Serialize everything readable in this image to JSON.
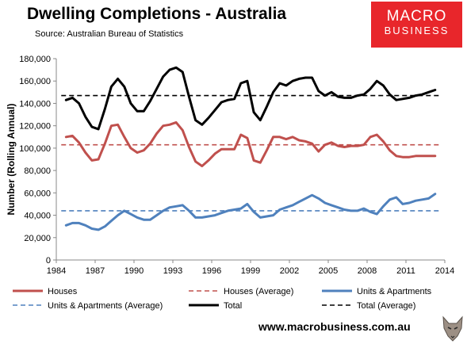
{
  "header": {
    "title": "Dwelling Completions - Australia",
    "subtitle": "Source: Australian Bureau of Statistics"
  },
  "logo": {
    "line1": "MACRO",
    "line2": "BUSINESS"
  },
  "footer": {
    "website": "www.macrobusiness.com.au"
  },
  "colors": {
    "houses": "#c0504d",
    "units": "#4f81bd",
    "total": "#000000",
    "logo_bg": "#e8262b"
  },
  "chart_data": {
    "type": "line",
    "title": "Dwelling Completions - Australia",
    "ylabel": "Number (Rolling Annual)",
    "xlim": [
      1984,
      2014
    ],
    "ylim": [
      0,
      180000
    ],
    "x_ticks": [
      "1984",
      "1987",
      "1990",
      "1993",
      "1996",
      "1999",
      "2002",
      "2005",
      "2008",
      "2011",
      "2014"
    ],
    "y_ticks": [
      "0",
      "20,000",
      "40,000",
      "60,000",
      "80,000",
      "100,000",
      "120,000",
      "140,000",
      "160,000",
      "180,000"
    ],
    "legend_position": "bottom",
    "x": [
      1984.75,
      1985.25,
      1985.75,
      1986.25,
      1986.75,
      1987.25,
      1987.75,
      1988.25,
      1988.75,
      1989.25,
      1989.75,
      1990.25,
      1990.75,
      1991.25,
      1991.75,
      1992.25,
      1992.75,
      1993.25,
      1993.75,
      1994.25,
      1994.75,
      1995.25,
      1995.75,
      1996.25,
      1996.75,
      1997.25,
      1997.75,
      1998.25,
      1998.75,
      1999.25,
      1999.75,
      2000.25,
      2000.75,
      2001.25,
      2001.75,
      2002.25,
      2002.75,
      2003.25,
      2003.75,
      2004.25,
      2004.75,
      2005.25,
      2005.75,
      2006.25,
      2006.75,
      2007.25,
      2007.75,
      2008.25,
      2008.75,
      2009.25,
      2009.75,
      2010.25,
      2010.75,
      2011.25,
      2011.75,
      2012.25,
      2012.75,
      2013.25
    ],
    "series": [
      {
        "name": "Houses",
        "style": "solid",
        "color": "#c0504d",
        "values": [
          110000,
          111000,
          105000,
          96000,
          89000,
          90000,
          104000,
          120000,
          121000,
          110000,
          100000,
          96000,
          98000,
          104000,
          113000,
          120000,
          121000,
          123000,
          116000,
          101000,
          88000,
          84000,
          89000,
          95000,
          99000,
          99000,
          99000,
          112000,
          109000,
          89000,
          87000,
          98000,
          110000,
          110000,
          108000,
          110000,
          107000,
          106000,
          104000,
          97000,
          103000,
          105000,
          102000,
          101000,
          102000,
          102000,
          103000,
          110000,
          112000,
          106000,
          98000,
          93000,
          92000,
          92000,
          93000,
          93000,
          93000,
          93000
        ]
      },
      {
        "name": "Houses (Average)",
        "style": "dashed",
        "color": "#c0504d",
        "value": 103000
      },
      {
        "name": "Units & Apartments",
        "style": "solid",
        "color": "#4f81bd",
        "values": [
          31000,
          33000,
          33000,
          31000,
          28000,
          27000,
          30000,
          35000,
          40000,
          44000,
          41000,
          38000,
          36000,
          36000,
          40000,
          44000,
          47000,
          48000,
          49000,
          44000,
          38000,
          38000,
          39000,
          40000,
          42000,
          44000,
          45000,
          46000,
          50000,
          43000,
          38000,
          39000,
          40000,
          45000,
          47000,
          49000,
          52000,
          55000,
          58000,
          55000,
          51000,
          49000,
          47000,
          45000,
          44000,
          44000,
          46000,
          43000,
          41000,
          48000,
          54000,
          56000,
          50000,
          51000,
          53000,
          54000,
          55000,
          59000
        ]
      },
      {
        "name": "Units & Apartments (Average)",
        "style": "dashed",
        "color": "#4f81bd",
        "value": 44000
      },
      {
        "name": "Total",
        "style": "solid",
        "color": "#000000",
        "values": [
          143000,
          145000,
          140000,
          128000,
          119000,
          117000,
          135000,
          155000,
          162000,
          155000,
          140000,
          133000,
          133000,
          142000,
          153000,
          164000,
          170000,
          172000,
          168000,
          146000,
          125000,
          121000,
          127000,
          134000,
          141000,
          143000,
          144000,
          158000,
          160000,
          132000,
          125000,
          137000,
          150000,
          158000,
          156000,
          160000,
          162000,
          163000,
          163000,
          151000,
          147000,
          150000,
          146000,
          145000,
          145000,
          147000,
          148000,
          153000,
          160000,
          156000,
          148000,
          143000,
          144000,
          145000,
          147000,
          148000,
          150000,
          152000
        ]
      },
      {
        "name": "Total (Average)",
        "style": "dashed",
        "color": "#000000",
        "value": 147000
      }
    ]
  }
}
